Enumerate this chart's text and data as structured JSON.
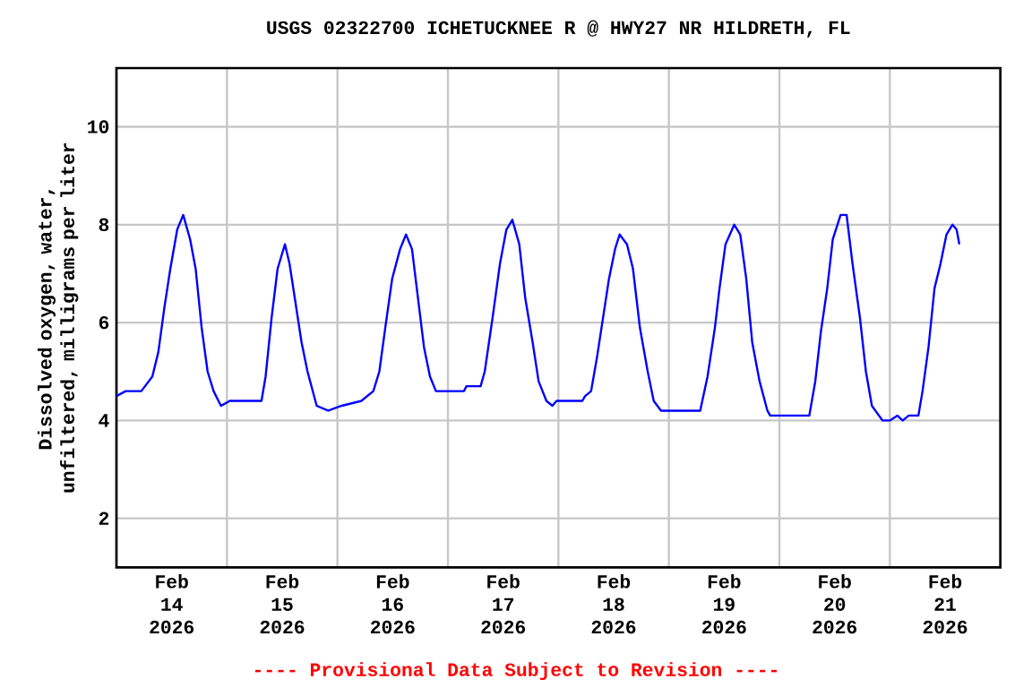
{
  "chart_data": {
    "type": "line",
    "title": "USGS 02322700 ICHETUCKNEE R @ HWY27 NR HILDRETH, FL",
    "ylabel": "Dissolved oxygen, water, unfiltered, milligrams per liter",
    "annotations": [
      "---- Provisional Data Subject to Revision ----"
    ],
    "xlim": [
      "2026-02-14T00:00",
      "2026-02-22T00:00"
    ],
    "ylim": [
      1,
      11.2
    ],
    "yticks": [
      2,
      4,
      6,
      8,
      10
    ],
    "xticks": [
      {
        "value": "2026-02-15T00:00",
        "label": null
      },
      {
        "value": "2026-02-16T00:00",
        "label": null
      },
      {
        "value": "2026-02-17T00:00",
        "label": null
      },
      {
        "value": "2026-02-18T00:00",
        "label": null
      },
      {
        "value": "2026-02-19T00:00",
        "label": null
      },
      {
        "value": "2026-02-20T00:00",
        "label": null
      },
      {
        "value": "2026-02-21T00:00",
        "label": null
      },
      {
        "value": "2026-02-14T12:00",
        "label": "Feb 14 2026"
      },
      {
        "value": "2026-02-15T12:00",
        "label": "Feb 15 2026"
      },
      {
        "value": "2026-02-16T12:00",
        "label": "Feb 16 2026"
      },
      {
        "value": "2026-02-17T12:00",
        "label": "Feb 17 2026"
      },
      {
        "value": "2026-02-18T12:00",
        "label": "Feb 18 2026"
      },
      {
        "value": "2026-02-19T12:00",
        "label": "Feb 19 2026"
      },
      {
        "value": "2026-02-20T12:00",
        "label": "Feb 20 2026"
      },
      {
        "value": "2026-02-21T12:00",
        "label": "Feb 21 2026"
      }
    ],
    "grid": true,
    "marker": "none",
    "line_style": "solid",
    "series": [
      {
        "color": "#0000ff",
        "x": [
          "2026-02-14T00:00",
          "2026-02-14T02:00",
          "2026-02-14T05:24",
          "2026-02-14T06:12",
          "2026-02-14T07:48",
          "2026-02-14T09:06",
          "2026-02-14T10:24",
          "2026-02-14T11:42",
          "2026-02-14T13:12",
          "2026-02-14T14:30",
          "2026-02-14T16:00",
          "2026-02-14T17:12",
          "2026-02-14T18:30",
          "2026-02-14T19:48",
          "2026-02-14T21:06",
          "2026-02-14T22:42",
          "2026-02-15T00:36",
          "2026-02-15T07:30",
          "2026-02-15T08:24",
          "2026-02-15T09:42",
          "2026-02-15T11:00",
          "2026-02-15T12:36",
          "2026-02-15T13:36",
          "2026-02-15T14:54",
          "2026-02-15T16:12",
          "2026-02-15T17:30",
          "2026-02-15T19:30",
          "2026-02-15T22:00",
          "2026-02-16T00:54",
          "2026-02-16T05:12",
          "2026-02-16T07:48",
          "2026-02-16T09:06",
          "2026-02-16T10:24",
          "2026-02-16T11:54",
          "2026-02-16T13:36",
          "2026-02-16T14:54",
          "2026-02-16T16:12",
          "2026-02-16T17:30",
          "2026-02-16T18:48",
          "2026-02-16T20:06",
          "2026-02-16T21:24",
          "2026-02-17T03:30",
          "2026-02-17T04:00",
          "2026-02-17T07:06",
          "2026-02-17T08:00",
          "2026-02-17T09:42",
          "2026-02-17T11:18",
          "2026-02-17T12:42",
          "2026-02-17T14:00",
          "2026-02-17T15:30",
          "2026-02-17T16:48",
          "2026-02-17T18:24",
          "2026-02-17T19:42",
          "2026-02-17T21:24",
          "2026-02-17T22:42",
          "2026-02-17T23:36",
          "2026-02-18T05:12",
          "2026-02-18T05:48",
          "2026-02-18T07:06",
          "2026-02-18T08:24",
          "2026-02-18T09:42",
          "2026-02-18T11:00",
          "2026-02-18T12:18",
          "2026-02-18T13:18",
          "2026-02-18T14:54",
          "2026-02-18T16:12",
          "2026-02-18T17:42",
          "2026-02-18T19:24",
          "2026-02-18T20:42",
          "2026-02-18T22:18",
          "2026-02-19T06:48",
          "2026-02-19T08:24",
          "2026-02-19T10:00",
          "2026-02-19T11:00",
          "2026-02-19T12:18",
          "2026-02-19T14:12",
          "2026-02-19T15:30",
          "2026-02-19T16:48",
          "2026-02-19T18:06",
          "2026-02-19T19:42",
          "2026-02-19T21:24",
          "2026-02-19T22:00",
          "2026-02-20T06:30",
          "2026-02-20T07:48",
          "2026-02-20T09:00",
          "2026-02-20T10:24",
          "2026-02-20T11:36",
          "2026-02-20T13:18",
          "2026-02-20T14:36",
          "2026-02-20T15:54",
          "2026-02-20T17:30",
          "2026-02-20T18:48",
          "2026-02-20T20:06",
          "2026-02-20T22:24",
          "2026-02-21T00:00",
          "2026-02-21T01:36",
          "2026-02-21T02:48",
          "2026-02-21T04:06",
          "2026-02-21T06:12",
          "2026-02-21T07:06",
          "2026-02-21T08:24",
          "2026-02-21T09:42",
          "2026-02-21T11:00",
          "2026-02-21T12:18",
          "2026-02-21T13:36",
          "2026-02-21T14:30",
          "2026-02-21T15:06"
        ],
        "values": [
          4.5,
          4.6,
          4.6,
          4.7,
          4.9,
          5.4,
          6.3,
          7.1,
          7.9,
          8.2,
          7.7,
          7.1,
          5.9,
          5.0,
          4.6,
          4.3,
          4.4,
          4.4,
          4.9,
          6.1,
          7.1,
          7.6,
          7.2,
          6.4,
          5.6,
          5.0,
          4.3,
          4.2,
          4.3,
          4.4,
          4.6,
          5.0,
          5.9,
          6.9,
          7.5,
          7.8,
          7.5,
          6.5,
          5.5,
          4.9,
          4.6,
          4.6,
          4.7,
          4.7,
          5.0,
          6.1,
          7.2,
          7.9,
          8.1,
          7.6,
          6.5,
          5.6,
          4.8,
          4.4,
          4.3,
          4.4,
          4.4,
          4.5,
          4.6,
          5.3,
          6.1,
          6.9,
          7.5,
          7.8,
          7.6,
          7.1,
          5.9,
          5.0,
          4.4,
          4.2,
          4.2,
          4.9,
          5.9,
          6.7,
          7.6,
          8.0,
          7.8,
          6.9,
          5.6,
          4.8,
          4.2,
          4.1,
          4.1,
          4.8,
          5.8,
          6.7,
          7.7,
          8.2,
          8.2,
          7.2,
          6.1,
          5.0,
          4.3,
          4.0,
          4.0,
          4.1,
          4.0,
          4.1,
          4.1,
          4.6,
          5.5,
          6.7,
          7.2,
          7.8,
          8.0,
          7.9,
          7.6
        ]
      }
    ]
  }
}
